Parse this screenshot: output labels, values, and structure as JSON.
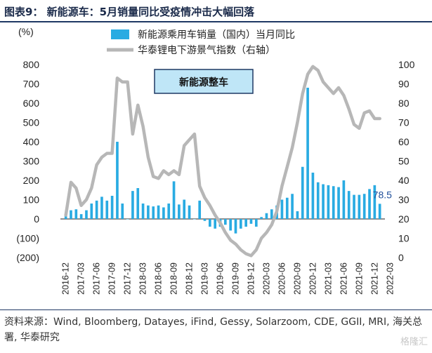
{
  "title": "图表9：  新能源车：5月销量同比受疫情冲击大幅回落",
  "source": "资料来源：Wind, Bloomberg, Datayes, iFind, Gessy, Solarzoom, CDE, GGII, MRI, 海关总署, 华泰研究",
  "watermark": "格隆汇",
  "chart_data": {
    "type": "bar",
    "annotation": "新能源整车",
    "left_axis": {
      "label": "(%)",
      "ticks": [
        "800",
        "700",
        "600",
        "500",
        "400",
        "300",
        "200",
        "100",
        "0",
        "(100)",
        "(200)"
      ],
      "range": [
        -200,
        800
      ]
    },
    "right_axis": {
      "ticks": [
        "100",
        "90",
        "80",
        "70",
        "60",
        "50",
        "40",
        "30",
        "20",
        "10",
        "0"
      ],
      "range": [
        0,
        100
      ]
    },
    "x_labels": [
      "2016-12",
      "2017-03",
      "2017-06",
      "2017-09",
      "2017-12",
      "2018-03",
      "2018-06",
      "2018-09",
      "2018-12",
      "2019-03",
      "2019-06",
      "2019-09",
      "2019-12",
      "2020-03",
      "2020-06",
      "2020-09",
      "2020-12",
      "2021-03",
      "2021-06",
      "2021-09",
      "2021-12",
      "2022-03"
    ],
    "start_month": "2016-12",
    "bar_series": {
      "name": "新能源乘用车销量（国内）当月同比",
      "color": "#29abe2",
      "axis": "left",
      "values": [
        25,
        45,
        50,
        25,
        45,
        80,
        95,
        115,
        95,
        120,
        400,
        80,
        0,
        145,
        160,
        80,
        70,
        65,
        70,
        60,
        80,
        195,
        75,
        100,
        70,
        0,
        95,
        -10,
        -40,
        -50,
        -40,
        -30,
        -60,
        -75,
        -50,
        -40,
        -25,
        -40,
        10,
        30,
        50,
        70,
        100,
        110,
        130,
        40,
        270,
        680,
        240,
        190,
        180,
        175,
        170,
        165,
        200,
        145,
        125,
        125,
        130,
        155,
        175,
        78.5
      ],
      "last_label": "78.5",
      "last_label_color": "#1f4e9a"
    },
    "line_series": {
      "name": "华泰锂电下游景气指数（右轴）",
      "color": "#b7b7b7",
      "axis": "right",
      "values": [
        22,
        39,
        36,
        27,
        30,
        36,
        48,
        52,
        54,
        54,
        93,
        91,
        91,
        64,
        79,
        68,
        52,
        42,
        41,
        45,
        43,
        45,
        43,
        58,
        61,
        64,
        37,
        31,
        27,
        22,
        18,
        13,
        9,
        7,
        4,
        2,
        1,
        4,
        10,
        13,
        17,
        24,
        37,
        47,
        57,
        70,
        85,
        95,
        99,
        97,
        91,
        88,
        85,
        88,
        84,
        77,
        69,
        67,
        75,
        76,
        72,
        72
      ]
    }
  }
}
